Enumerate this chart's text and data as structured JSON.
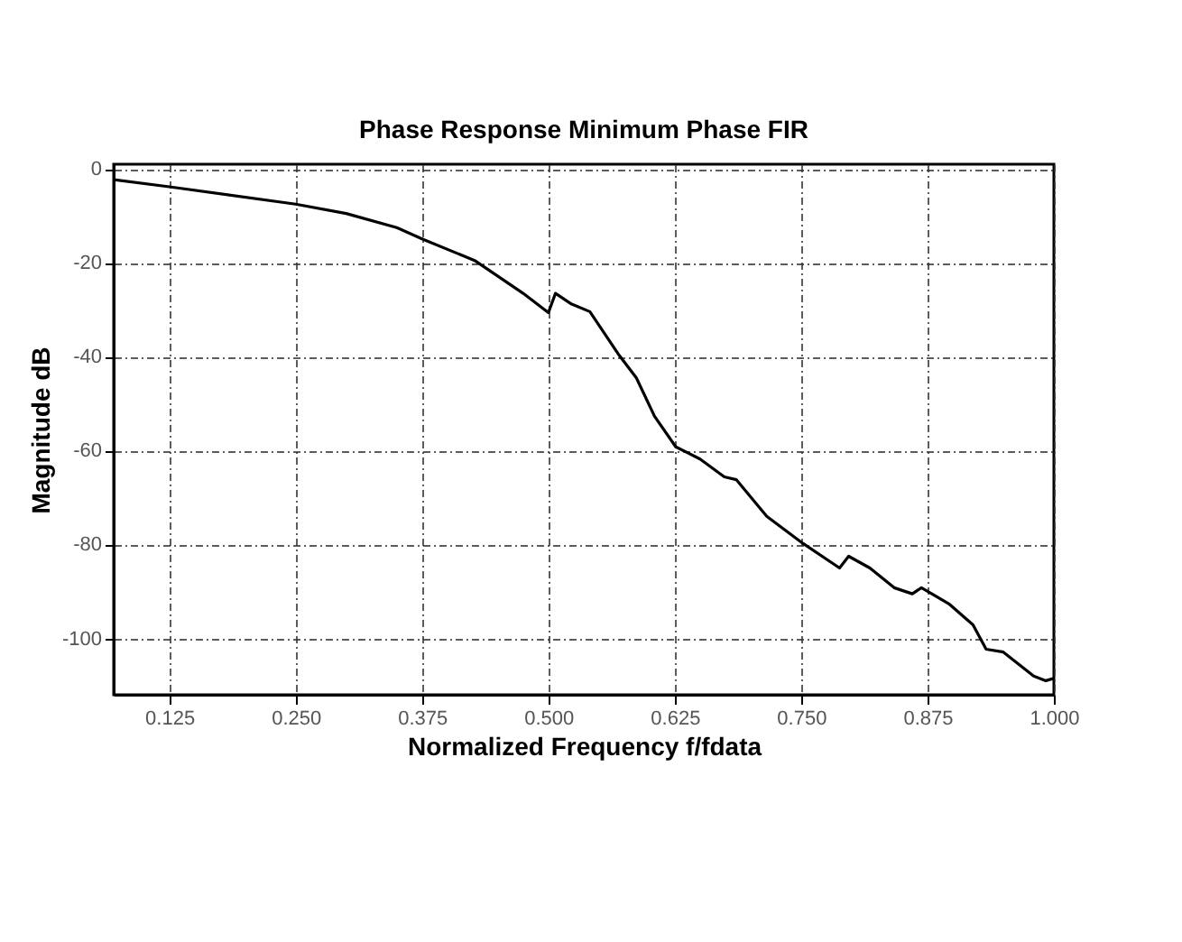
{
  "chart_data": {
    "type": "line",
    "title": "Phase Response Minimum Phase FIR",
    "xlabel": "Normalized Frequency f/fdata",
    "ylabel": "Magnitude dB",
    "xlim": [
      0.07,
      1.0
    ],
    "ylim": [
      -112,
      1
    ],
    "xticks": [
      {
        "value": 0.125,
        "label": "0.125"
      },
      {
        "value": 0.25,
        "label": "0.250"
      },
      {
        "value": 0.375,
        "label": "0.375"
      },
      {
        "value": 0.5,
        "label": "0.500"
      },
      {
        "value": 0.625,
        "label": "0.625"
      },
      {
        "value": 0.75,
        "label": "0.750"
      },
      {
        "value": 0.875,
        "label": "0.875"
      },
      {
        "value": 1.0,
        "label": "1.000"
      }
    ],
    "yticks": [
      0,
      -20,
      -40,
      -60,
      -80,
      -100
    ],
    "grid": true,
    "marker": "none",
    "line_style": "solid",
    "series": [
      {
        "color": "#000000",
        "x": [
          0.07,
          0.125,
          0.25,
          0.3,
          0.35,
          0.376,
          0.427,
          0.475,
          0.5,
          0.507,
          0.523,
          0.541,
          0.569,
          0.587,
          0.605,
          0.626,
          0.65,
          0.674,
          0.686,
          0.716,
          0.752,
          0.788,
          0.797,
          0.818,
          0.842,
          0.86,
          0.869,
          0.896,
          0.92,
          0.933,
          0.95,
          0.98,
          0.992,
          1.0
        ],
        "values": [
          -2.3,
          -3.8,
          -7.5,
          -9.5,
          -12.5,
          -15,
          -19.5,
          -26.5,
          -30.6,
          -26.5,
          -28.8,
          -30.4,
          -39.4,
          -44.5,
          -52.7,
          -59.2,
          -61.8,
          -65.6,
          -66.2,
          -74,
          -79.8,
          -85,
          -82.5,
          -85,
          -89.2,
          -90.5,
          -89.2,
          -92.6,
          -97.1,
          -102.3,
          -102.9,
          -108,
          -109,
          -108.5
        ]
      }
    ]
  }
}
